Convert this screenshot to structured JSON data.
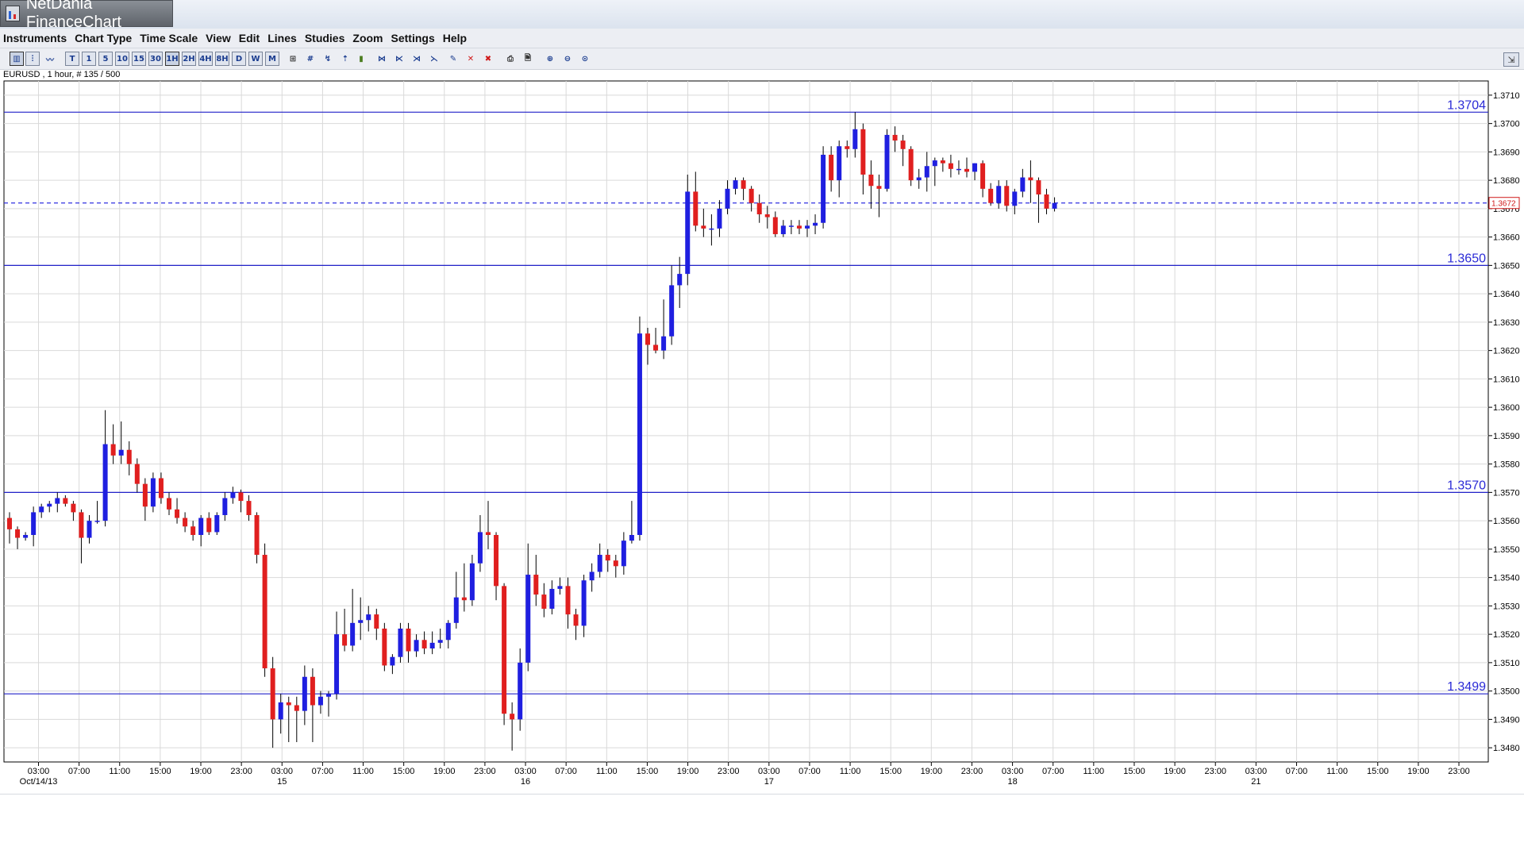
{
  "window": {
    "title": "NetDania FinanceChart"
  },
  "menu": [
    "Instruments",
    "Chart Type",
    "Time Scale",
    "View",
    "Edit",
    "Lines",
    "Studies",
    "Zoom",
    "Settings",
    "Help"
  ],
  "toolbar": {
    "buttons": [
      {
        "name": "chart-type-candles-icon",
        "glyph": "▥",
        "style": "active"
      },
      {
        "name": "chart-type-bars-icon",
        "glyph": "⫶",
        "style": "boxed"
      },
      {
        "name": "chart-type-line-icon",
        "glyph": "〰",
        "style": "plain"
      },
      {
        "name": "timescale-tick-button",
        "glyph": "T",
        "style": "boxed"
      },
      {
        "name": "timescale-1m-button",
        "glyph": "1",
        "style": "boxed"
      },
      {
        "name": "timescale-5m-button",
        "glyph": "5",
        "style": "boxed"
      },
      {
        "name": "timescale-10m-button",
        "glyph": "10",
        "style": "boxed"
      },
      {
        "name": "timescale-15m-button",
        "glyph": "15",
        "style": "boxed"
      },
      {
        "name": "timescale-30m-button",
        "glyph": "30",
        "style": "boxed"
      },
      {
        "name": "timescale-1h-button",
        "glyph": "1H",
        "style": "active"
      },
      {
        "name": "timescale-2h-button",
        "glyph": "2H",
        "style": "boxed"
      },
      {
        "name": "timescale-4h-button",
        "glyph": "4H",
        "style": "boxed"
      },
      {
        "name": "timescale-8h-button",
        "glyph": "8H",
        "style": "boxed"
      },
      {
        "name": "timescale-day-button",
        "glyph": "D",
        "style": "boxed"
      },
      {
        "name": "timescale-week-button",
        "glyph": "W",
        "style": "boxed"
      },
      {
        "name": "timescale-month-button",
        "glyph": "M",
        "style": "boxed"
      },
      {
        "name": "crosshair-icon",
        "glyph": "⊞",
        "style": "dark"
      },
      {
        "name": "grid-icon",
        "glyph": "#",
        "style": "plain"
      },
      {
        "name": "draw-line-icon",
        "glyph": "↯",
        "style": "plain"
      },
      {
        "name": "draw-trend-icon",
        "glyph": "⇡",
        "style": "plain"
      },
      {
        "name": "volume-icon",
        "glyph": "▮",
        "style": "green"
      },
      {
        "name": "fibonacci-icon",
        "glyph": "⋈",
        "style": "plain"
      },
      {
        "name": "fan-icon",
        "glyph": "⋉",
        "style": "plain"
      },
      {
        "name": "channel-icon",
        "glyph": "⋊",
        "style": "plain"
      },
      {
        "name": "arc-icon",
        "glyph": "⋋",
        "style": "plain"
      },
      {
        "name": "pencil-icon",
        "glyph": "✎",
        "style": "plain"
      },
      {
        "name": "delete-icon",
        "glyph": "✕",
        "style": "red"
      },
      {
        "name": "delete-all-icon",
        "glyph": "✖",
        "style": "red"
      },
      {
        "name": "print-icon",
        "glyph": "⎙",
        "style": "dark"
      },
      {
        "name": "print-preview-icon",
        "glyph": "🗎",
        "style": "dark"
      },
      {
        "name": "zoom-in-icon",
        "glyph": "⊕",
        "style": "plain"
      },
      {
        "name": "zoom-out-icon",
        "glyph": "⊖",
        "style": "plain"
      },
      {
        "name": "zoom-reset-icon",
        "glyph": "⊙",
        "style": "plain"
      }
    ],
    "corner_glyph": "⇲"
  },
  "chart_label": "EURUSD , 1 hour, # 135 / 500",
  "colors": {
    "up": "#1f1fe0",
    "down": "#e01f1f",
    "wick": "#000000",
    "grid": "#d9d9d9",
    "hline": "#2020c8",
    "hline_text": "#2a2ad6",
    "current": "#3030e0"
  },
  "chart_data": {
    "type": "candlestick",
    "symbol": "EURUSD",
    "interval": "1 hour",
    "ylim": [
      1.3475,
      1.3715
    ],
    "yticks": [
      "1.3480",
      "1.3490",
      "1.3500",
      "1.3510",
      "1.3520",
      "1.3530",
      "1.3540",
      "1.3550",
      "1.3560",
      "1.3570",
      "1.3580",
      "1.3590",
      "1.3600",
      "1.3610",
      "1.3620",
      "1.3630",
      "1.3640",
      "1.3650",
      "1.3660",
      "1.3670",
      "1.3680",
      "1.3690",
      "1.3700",
      "1.3710"
    ],
    "xticks": [
      {
        "label": "03:00",
        "sub": "Oct/14/13"
      },
      {
        "label": "07:00",
        "sub": ""
      },
      {
        "label": "11:00",
        "sub": ""
      },
      {
        "label": "15:00",
        "sub": ""
      },
      {
        "label": "19:00",
        "sub": ""
      },
      {
        "label": "23:00",
        "sub": ""
      },
      {
        "label": "03:00",
        "sub": "15"
      },
      {
        "label": "07:00",
        "sub": ""
      },
      {
        "label": "11:00",
        "sub": ""
      },
      {
        "label": "15:00",
        "sub": ""
      },
      {
        "label": "19:00",
        "sub": ""
      },
      {
        "label": "23:00",
        "sub": ""
      },
      {
        "label": "03:00",
        "sub": "16"
      },
      {
        "label": "07:00",
        "sub": ""
      },
      {
        "label": "11:00",
        "sub": ""
      },
      {
        "label": "15:00",
        "sub": ""
      },
      {
        "label": "19:00",
        "sub": ""
      },
      {
        "label": "23:00",
        "sub": ""
      },
      {
        "label": "03:00",
        "sub": "17"
      },
      {
        "label": "07:00",
        "sub": ""
      },
      {
        "label": "11:00",
        "sub": ""
      },
      {
        "label": "15:00",
        "sub": ""
      },
      {
        "label": "19:00",
        "sub": ""
      },
      {
        "label": "23:00",
        "sub": ""
      },
      {
        "label": "03:00",
        "sub": "18"
      },
      {
        "label": "07:00",
        "sub": ""
      },
      {
        "label": "11:00",
        "sub": ""
      },
      {
        "label": "15:00",
        "sub": ""
      },
      {
        "label": "19:00",
        "sub": ""
      },
      {
        "label": "23:00",
        "sub": ""
      },
      {
        "label": "03:00",
        "sub": "21"
      },
      {
        "label": "07:00",
        "sub": ""
      },
      {
        "label": "11:00",
        "sub": ""
      },
      {
        "label": "15:00",
        "sub": ""
      },
      {
        "label": "19:00",
        "sub": ""
      },
      {
        "label": "23:00",
        "sub": ""
      }
    ],
    "hlines": [
      {
        "label": "1.3704",
        "value": 1.3704
      },
      {
        "label": "1.3650",
        "value": 1.365
      },
      {
        "label": "1.3570",
        "value": 1.357
      },
      {
        "label": "1.3499",
        "value": 1.3499
      }
    ],
    "current_price": {
      "label": "1.3672",
      "value": 1.3672
    },
    "candles": [
      [
        1.3561,
        1.3563,
        1.3552,
        1.3557
      ],
      [
        1.3557,
        1.3558,
        1.355,
        1.3554
      ],
      [
        1.3554,
        1.3556,
        1.3553,
        1.3555
      ],
      [
        1.3555,
        1.3565,
        1.3551,
        1.3563
      ],
      [
        1.3563,
        1.3566,
        1.3561,
        1.3565
      ],
      [
        1.3565,
        1.3567,
        1.3563,
        1.3566
      ],
      [
        1.3566,
        1.357,
        1.3563,
        1.3568
      ],
      [
        1.3568,
        1.3569,
        1.3565,
        1.3566
      ],
      [
        1.3566,
        1.3567,
        1.356,
        1.3563
      ],
      [
        1.3563,
        1.3564,
        1.3545,
        1.3554
      ],
      [
        1.3554,
        1.3562,
        1.3552,
        1.356
      ],
      [
        1.356,
        1.3567,
        1.3559,
        1.356
      ],
      [
        1.356,
        1.3599,
        1.3558,
        1.3587
      ],
      [
        1.3587,
        1.3594,
        1.358,
        1.3583
      ],
      [
        1.3583,
        1.3595,
        1.358,
        1.3585
      ],
      [
        1.3585,
        1.3588,
        1.3576,
        1.358
      ],
      [
        1.358,
        1.3582,
        1.357,
        1.3573
      ],
      [
        1.3573,
        1.3575,
        1.356,
        1.3565
      ],
      [
        1.3565,
        1.3577,
        1.3563,
        1.3575
      ],
      [
        1.3575,
        1.3577,
        1.3566,
        1.3568
      ],
      [
        1.3568,
        1.357,
        1.3562,
        1.3564
      ],
      [
        1.3564,
        1.3568,
        1.3559,
        1.3561
      ],
      [
        1.3561,
        1.3563,
        1.3556,
        1.3558
      ],
      [
        1.3558,
        1.356,
        1.3553,
        1.3555
      ],
      [
        1.3555,
        1.3562,
        1.3551,
        1.3561
      ],
      [
        1.3561,
        1.3563,
        1.3555,
        1.3556
      ],
      [
        1.3556,
        1.3563,
        1.3555,
        1.3562
      ],
      [
        1.3562,
        1.357,
        1.356,
        1.3568
      ],
      [
        1.3568,
        1.3572,
        1.3566,
        1.357
      ],
      [
        1.357,
        1.3571,
        1.3563,
        1.3567
      ],
      [
        1.3567,
        1.3569,
        1.356,
        1.3562
      ],
      [
        1.3562,
        1.3563,
        1.3545,
        1.3548
      ],
      [
        1.3548,
        1.3552,
        1.3505,
        1.3508
      ],
      [
        1.3508,
        1.3512,
        1.348,
        1.349
      ],
      [
        1.349,
        1.3499,
        1.3485,
        1.3496
      ],
      [
        1.3496,
        1.3498,
        1.3482,
        1.3495
      ],
      [
        1.3495,
        1.3498,
        1.3482,
        1.3493
      ],
      [
        1.3493,
        1.3509,
        1.3488,
        1.3505
      ],
      [
        1.3505,
        1.3508,
        1.3482,
        1.3495
      ],
      [
        1.3495,
        1.35,
        1.3492,
        1.3498
      ],
      [
        1.3498,
        1.35,
        1.3491,
        1.3499
      ],
      [
        1.3499,
        1.3528,
        1.3497,
        1.352
      ],
      [
        1.352,
        1.3529,
        1.3514,
        1.3516
      ],
      [
        1.3516,
        1.3536,
        1.3514,
        1.3524
      ],
      [
        1.3524,
        1.3533,
        1.3518,
        1.3525
      ],
      [
        1.3525,
        1.353,
        1.3521,
        1.3527
      ],
      [
        1.3527,
        1.3529,
        1.3518,
        1.3522
      ],
      [
        1.3522,
        1.3524,
        1.3507,
        1.3509
      ],
      [
        1.3509,
        1.3513,
        1.3506,
        1.3512
      ],
      [
        1.3512,
        1.3524,
        1.351,
        1.3522
      ],
      [
        1.3522,
        1.3524,
        1.351,
        1.3514
      ],
      [
        1.3514,
        1.352,
        1.3512,
        1.3518
      ],
      [
        1.3518,
        1.3521,
        1.3513,
        1.3515
      ],
      [
        1.3515,
        1.3521,
        1.3513,
        1.3517
      ],
      [
        1.3517,
        1.3522,
        1.3515,
        1.3518
      ],
      [
        1.3518,
        1.3525,
        1.3515,
        1.3524
      ],
      [
        1.3524,
        1.3542,
        1.3522,
        1.3533
      ],
      [
        1.3533,
        1.3545,
        1.3528,
        1.3532
      ],
      [
        1.3532,
        1.3548,
        1.353,
        1.3545
      ],
      [
        1.3545,
        1.3562,
        1.3542,
        1.3556
      ],
      [
        1.3556,
        1.3567,
        1.355,
        1.3555
      ],
      [
        1.3555,
        1.3556,
        1.3532,
        1.3537
      ],
      [
        1.3537,
        1.3538,
        1.3488,
        1.3492
      ],
      [
        1.3492,
        1.3496,
        1.3479,
        1.349
      ],
      [
        1.349,
        1.3515,
        1.3486,
        1.351
      ],
      [
        1.351,
        1.3552,
        1.3507,
        1.3541
      ],
      [
        1.3541,
        1.3548,
        1.353,
        1.3534
      ],
      [
        1.3534,
        1.3538,
        1.3526,
        1.3529
      ],
      [
        1.3529,
        1.3539,
        1.3527,
        1.3536
      ],
      [
        1.3536,
        1.354,
        1.3534,
        1.3537
      ],
      [
        1.3537,
        1.354,
        1.3522,
        1.3527
      ],
      [
        1.3527,
        1.3529,
        1.3518,
        1.3523
      ],
      [
        1.3523,
        1.3541,
        1.3519,
        1.3539
      ],
      [
        1.3539,
        1.3545,
        1.3535,
        1.3542
      ],
      [
        1.3542,
        1.3552,
        1.354,
        1.3548
      ],
      [
        1.3548,
        1.355,
        1.3542,
        1.3546
      ],
      [
        1.3546,
        1.3548,
        1.354,
        1.3544
      ],
      [
        1.3544,
        1.3556,
        1.3541,
        1.3553
      ],
      [
        1.3553,
        1.3567,
        1.3552,
        1.3555
      ],
      [
        1.3555,
        1.3632,
        1.3553,
        1.3626
      ],
      [
        1.3626,
        1.3628,
        1.3615,
        1.3622
      ],
      [
        1.3622,
        1.3628,
        1.3619,
        1.362
      ],
      [
        1.362,
        1.3638,
        1.3617,
        1.3625
      ],
      [
        1.3625,
        1.365,
        1.3622,
        1.3643
      ],
      [
        1.3643,
        1.3653,
        1.3635,
        1.3647
      ],
      [
        1.3647,
        1.3682,
        1.3643,
        1.3676
      ],
      [
        1.3676,
        1.3683,
        1.3662,
        1.3664
      ],
      [
        1.3664,
        1.367,
        1.366,
        1.3663
      ],
      [
        1.3663,
        1.3668,
        1.3657,
        1.3663
      ],
      [
        1.3663,
        1.3673,
        1.366,
        1.367
      ],
      [
        1.367,
        1.368,
        1.3668,
        1.3677
      ],
      [
        1.3677,
        1.3681,
        1.3675,
        1.368
      ],
      [
        1.368,
        1.3681,
        1.3673,
        1.3677
      ],
      [
        1.3677,
        1.3678,
        1.3669,
        1.3672
      ],
      [
        1.3672,
        1.3675,
        1.3665,
        1.3668
      ],
      [
        1.3668,
        1.3671,
        1.3663,
        1.3667
      ],
      [
        1.3667,
        1.3669,
        1.366,
        1.3661
      ],
      [
        1.3661,
        1.3666,
        1.366,
        1.3664
      ],
      [
        1.3664,
        1.3666,
        1.3661,
        1.3664
      ],
      [
        1.3664,
        1.3666,
        1.3661,
        1.3663
      ],
      [
        1.3663,
        1.3666,
        1.366,
        1.3664
      ],
      [
        1.3664,
        1.3668,
        1.3661,
        1.3665
      ],
      [
        1.3665,
        1.3692,
        1.3663,
        1.3689
      ],
      [
        1.3689,
        1.3692,
        1.3676,
        1.368
      ],
      [
        1.368,
        1.3694,
        1.3674,
        1.3692
      ],
      [
        1.3692,
        1.3694,
        1.3688,
        1.3691
      ],
      [
        1.3691,
        1.3704,
        1.3688,
        1.3698
      ],
      [
        1.3698,
        1.37,
        1.3675,
        1.3682
      ],
      [
        1.3682,
        1.3687,
        1.367,
        1.3678
      ],
      [
        1.3678,
        1.3682,
        1.3667,
        1.3677
      ],
      [
        1.3677,
        1.3698,
        1.3676,
        1.3696
      ],
      [
        1.3696,
        1.3699,
        1.369,
        1.3694
      ],
      [
        1.3694,
        1.3696,
        1.3685,
        1.3691
      ],
      [
        1.3691,
        1.3692,
        1.3678,
        1.368
      ],
      [
        1.368,
        1.3684,
        1.3677,
        1.3681
      ],
      [
        1.3681,
        1.369,
        1.3676,
        1.3685
      ],
      [
        1.3685,
        1.3688,
        1.3678,
        1.3687
      ],
      [
        1.3687,
        1.3688,
        1.3683,
        1.3686
      ],
      [
        1.3686,
        1.3689,
        1.3681,
        1.3684
      ],
      [
        1.3684,
        1.3687,
        1.3682,
        1.3684
      ],
      [
        1.3684,
        1.3688,
        1.3681,
        1.3683
      ],
      [
        1.3683,
        1.3686,
        1.368,
        1.3686
      ],
      [
        1.3686,
        1.3687,
        1.3674,
        1.3677
      ],
      [
        1.3677,
        1.3679,
        1.3671,
        1.3672
      ],
      [
        1.3672,
        1.368,
        1.367,
        1.3678
      ],
      [
        1.3678,
        1.368,
        1.3669,
        1.3671
      ],
      [
        1.3671,
        1.3677,
        1.3668,
        1.3676
      ],
      [
        1.3676,
        1.3684,
        1.3674,
        1.3681
      ],
      [
        1.3681,
        1.3687,
        1.3672,
        1.368
      ],
      [
        1.368,
        1.3681,
        1.3665,
        1.3675
      ],
      [
        1.3675,
        1.3677,
        1.3668,
        1.367
      ],
      [
        1.367,
        1.3674,
        1.3669,
        1.3672
      ]
    ]
  }
}
